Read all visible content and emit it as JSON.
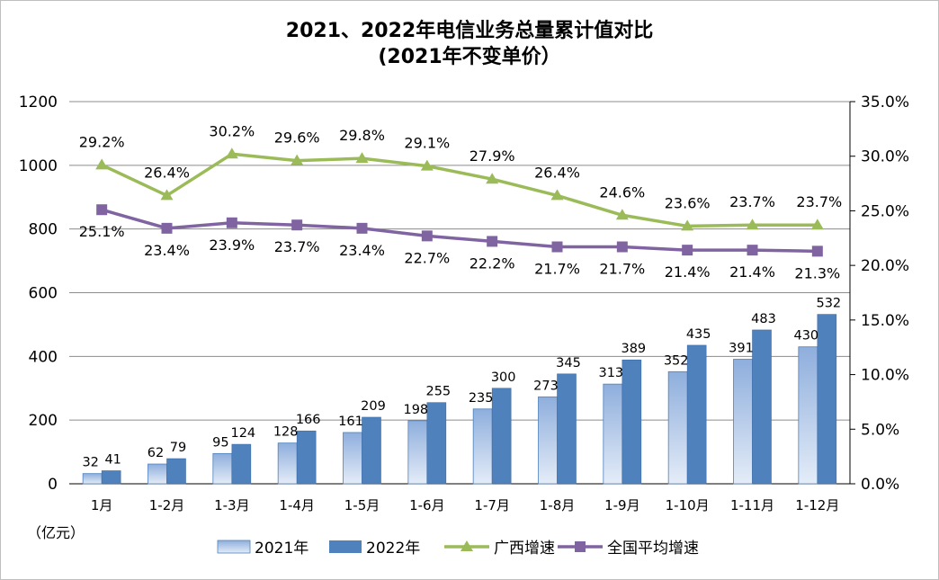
{
  "chart_data": {
    "type": "bar",
    "title": "2021、2022年电信业务总量累计值对比",
    "subtitle": "(2021年不变单价）",
    "unit_label": "（亿元）",
    "categories": [
      "1月",
      "1-2月",
      "1-3月",
      "1-4月",
      "1-5月",
      "1-6月",
      "1-7月",
      "1-8月",
      "1-9月",
      "1-10月",
      "1-11月",
      "1-12月"
    ],
    "left_axis": {
      "ylim": [
        0,
        1200
      ],
      "ticks": [
        "0",
        "200",
        "400",
        "600",
        "800",
        "1000",
        "1200"
      ]
    },
    "right_axis": {
      "ylim": [
        0,
        35
      ],
      "ticks": [
        "0.0%",
        "5.0%",
        "10.0%",
        "15.0%",
        "20.0%",
        "25.0%",
        "30.0%",
        "35.0%"
      ]
    },
    "grid": true,
    "legend_position": "bottom",
    "series": [
      {
        "name": "2021年",
        "type": "bar",
        "axis": "left",
        "color": "#9db7df",
        "values": [
          32,
          62,
          95,
          128,
          161,
          198,
          235,
          273,
          313,
          352,
          391,
          430
        ],
        "labels": [
          "32",
          "62",
          "95",
          "128",
          "161",
          "198",
          "235",
          "273",
          "313",
          "352",
          "391",
          "430"
        ]
      },
      {
        "name": "2022年",
        "type": "bar",
        "axis": "left",
        "color": "#4f81bd",
        "values": [
          41,
          79,
          124,
          166,
          209,
          255,
          300,
          345,
          389,
          435,
          483,
          532
        ],
        "labels": [
          "41",
          "79",
          "124",
          "166",
          "209",
          "255",
          "300",
          "345",
          "389",
          "435",
          "483",
          "532"
        ]
      },
      {
        "name": "广西增速",
        "type": "line",
        "axis": "right",
        "color": "#9bbb59",
        "marker": "triangle",
        "values": [
          29.2,
          26.4,
          30.2,
          29.6,
          29.8,
          29.1,
          27.9,
          26.4,
          24.6,
          23.6,
          23.7,
          23.7
        ],
        "labels": [
          "29.2%",
          "26.4%",
          "30.2%",
          "29.6%",
          "29.8%",
          "29.1%",
          "27.9%",
          "26.4%",
          "24.6%",
          "23.6%",
          "23.7%",
          "23.7%"
        ]
      },
      {
        "name": "全国平均增速",
        "type": "line",
        "axis": "right",
        "color": "#8064a2",
        "marker": "square",
        "values": [
          25.1,
          23.4,
          23.9,
          23.7,
          23.4,
          22.7,
          22.2,
          21.7,
          21.7,
          21.4,
          21.4,
          21.3
        ],
        "labels": [
          "25.1%",
          "23.4%",
          "23.9%",
          "23.7%",
          "23.4%",
          "22.7%",
          "22.2%",
          "21.7%",
          "21.7%",
          "21.4%",
          "21.4%",
          "21.3%"
        ]
      }
    ]
  }
}
